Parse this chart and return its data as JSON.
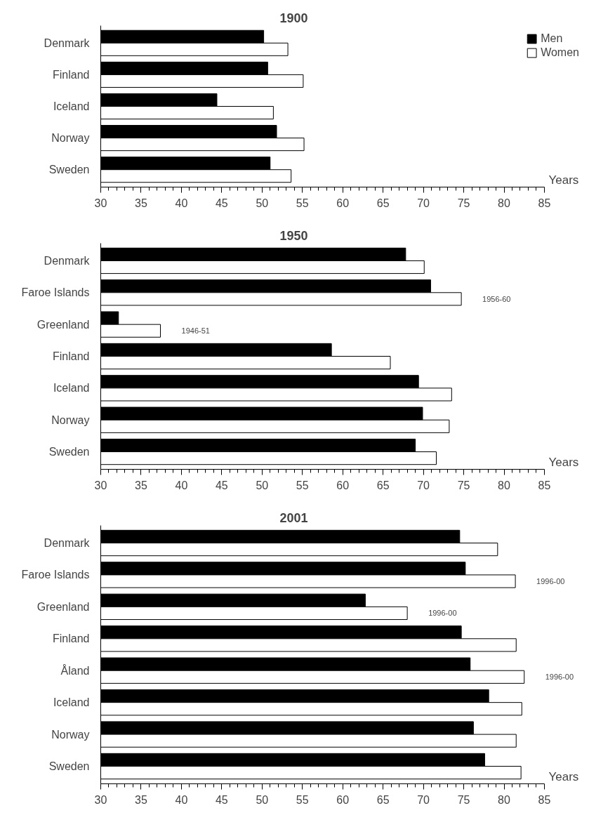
{
  "chart_data": [
    {
      "type": "bar",
      "orientation": "horizontal",
      "title": "1900",
      "xlabel": "Years",
      "categories": [
        "Denmark",
        "Finland",
        "Iceland",
        "Norway",
        "Sweden"
      ],
      "series": [
        {
          "name": "Men",
          "color": "#000000",
          "values": [
            50.2,
            50.7,
            44.4,
            51.8,
            51.0
          ]
        },
        {
          "name": "Women",
          "color": "#ffffff",
          "values": [
            53.2,
            55.1,
            51.4,
            55.2,
            53.6
          ]
        }
      ],
      "xlim": [
        30,
        85
      ],
      "xticks": [
        30,
        35,
        40,
        45,
        50,
        55,
        60,
        65,
        70,
        75,
        80,
        85
      ],
      "grid": false,
      "legend": "top right"
    },
    {
      "type": "bar",
      "orientation": "horizontal",
      "title": "1950",
      "xlabel": "Years",
      "categories": [
        "Denmark",
        "Faroe Islands",
        "Greenland",
        "Finland",
        "Iceland",
        "Norway",
        "Sweden"
      ],
      "series": [
        {
          "color": "#000000",
          "values": [
            67.8,
            70.9,
            32.2,
            58.6,
            69.4,
            69.9,
            69.0
          ]
        },
        {
          "color": "#ffffff",
          "values": [
            70.1,
            74.7,
            37.4,
            65.9,
            73.5,
            73.2,
            71.6
          ]
        }
      ],
      "annotations": [
        {
          "text": "1956-60",
          "x": 74.7,
          "y": "Faroe Islands"
        },
        {
          "text": "1946-51",
          "x": 37.4,
          "y": "Greenland"
        }
      ],
      "xlim": [
        30,
        85
      ],
      "xticks": [
        30,
        35,
        40,
        45,
        50,
        55,
        60,
        65,
        70,
        75,
        80,
        85
      ],
      "grid": false,
      "legend": false
    },
    {
      "type": "bar",
      "orientation": "horizontal",
      "title": "2001",
      "xlabel": "Years",
      "categories": [
        "Denmark",
        "Faroe Islands",
        "Greenland",
        "Finland",
        "Åland",
        "Iceland",
        "Norway",
        "Sweden"
      ],
      "series": [
        {
          "color": "#000000",
          "values": [
            74.5,
            75.2,
            62.8,
            74.7,
            75.8,
            78.1,
            76.2,
            77.6
          ]
        },
        {
          "color": "#ffffff",
          "values": [
            79.2,
            81.4,
            68.0,
            81.5,
            82.5,
            82.2,
            81.5,
            82.1
          ]
        }
      ],
      "annotations": [
        {
          "text": "1996-00",
          "x": 81.4,
          "y": "Faroe Islands"
        },
        {
          "text": "1996-00",
          "x": 68.0,
          "y": "Greenland"
        },
        {
          "text": "1996-00",
          "x": 82.5,
          "y": "Åland"
        }
      ],
      "xlim": [
        30,
        85
      ],
      "xticks": [
        30,
        35,
        40,
        45,
        50,
        55,
        60,
        65,
        70,
        75,
        80,
        85
      ],
      "grid": false,
      "legend": false
    }
  ]
}
